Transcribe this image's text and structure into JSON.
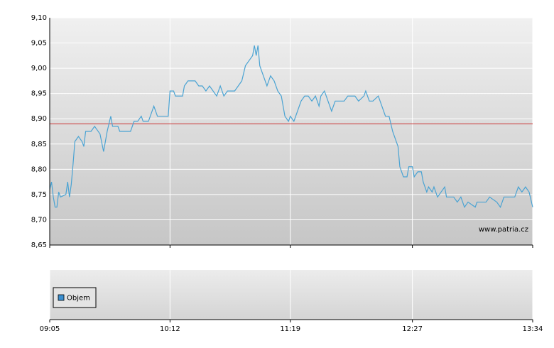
{
  "chart_data": {
    "type": "line",
    "x": [
      "09:05",
      "09:06",
      "09:07",
      "09:08",
      "09:09",
      "09:10",
      "09:11",
      "09:14",
      "09:15",
      "09:16",
      "09:17",
      "09:18",
      "09:19",
      "09:21",
      "09:23",
      "09:24",
      "09:25",
      "09:28",
      "09:30",
      "09:33",
      "09:35",
      "09:37",
      "09:39",
      "09:40",
      "09:43",
      "09:44",
      "09:50",
      "09:52",
      "09:54",
      "09:56",
      "09:57",
      "10:00",
      "10:02",
      "10:03",
      "10:05",
      "10:10",
      "10:11",
      "10:12",
      "10:14",
      "10:15",
      "10:19",
      "10:20",
      "10:22",
      "10:26",
      "10:28",
      "10:30",
      "10:32",
      "10:34",
      "10:36",
      "10:38",
      "10:40",
      "10:42",
      "10:44",
      "10:48",
      "10:50",
      "10:52",
      "10:54",
      "10:56",
      "10:58",
      "10:59",
      "11:00",
      "11:01",
      "11:02",
      "11:04",
      "11:06",
      "11:08",
      "11:10",
      "11:12",
      "11:14",
      "11:15",
      "11:16",
      "11:18",
      "11:19",
      "11:21",
      "11:23",
      "11:25",
      "11:27",
      "11:29",
      "11:31",
      "11:33",
      "11:35",
      "11:36",
      "11:38",
      "11:40",
      "11:42",
      "11:44",
      "11:49",
      "11:51",
      "11:55",
      "11:57",
      "12:00",
      "12:01",
      "12:03",
      "12:05",
      "12:08",
      "12:09",
      "12:11",
      "12:12",
      "12:14",
      "12:16",
      "12:17",
      "12:19",
      "12:20",
      "12:22",
      "12:24",
      "12:25",
      "12:27",
      "12:28",
      "12:30",
      "12:32",
      "12:33",
      "12:35",
      "12:36",
      "12:38",
      "12:39",
      "12:41",
      "12:43",
      "12:45",
      "12:46",
      "12:50",
      "12:52",
      "12:54",
      "12:56",
      "12:58",
      "13:02",
      "13:03",
      "13:08",
      "13:10",
      "13:14",
      "13:16",
      "13:18",
      "13:24",
      "13:26",
      "13:28",
      "13:30",
      "13:32",
      "13:34"
    ],
    "series": [
      {
        "color": "#4aa3d3",
        "values": [
          8.76,
          8.775,
          8.745,
          8.725,
          8.725,
          8.755,
          8.745,
          8.75,
          8.775,
          8.745,
          8.77,
          8.81,
          8.855,
          8.865,
          8.855,
          8.845,
          8.875,
          8.875,
          8.885,
          8.87,
          8.835,
          8.875,
          8.905,
          8.885,
          8.885,
          8.875,
          8.875,
          8.895,
          8.895,
          8.905,
          8.895,
          8.895,
          8.915,
          8.925,
          8.905,
          8.905,
          8.905,
          8.955,
          8.955,
          8.945,
          8.945,
          8.965,
          8.975,
          8.975,
          8.965,
          8.965,
          8.955,
          8.965,
          8.955,
          8.945,
          8.965,
          8.945,
          8.955,
          8.955,
          8.965,
          8.975,
          9.005,
          9.015,
          9.025,
          9.045,
          9.025,
          9.045,
          9.005,
          8.985,
          8.965,
          8.985,
          8.975,
          8.955,
          8.945,
          8.925,
          8.905,
          8.895,
          8.905,
          8.895,
          8.915,
          8.935,
          8.945,
          8.945,
          8.935,
          8.945,
          8.925,
          8.945,
          8.955,
          8.935,
          8.915,
          8.935,
          8.935,
          8.945,
          8.945,
          8.935,
          8.945,
          8.955,
          8.935,
          8.935,
          8.945,
          8.935,
          8.915,
          8.905,
          8.905,
          8.875,
          8.865,
          8.845,
          8.805,
          8.785,
          8.785,
          8.805,
          8.805,
          8.785,
          8.795,
          8.795,
          8.775,
          8.755,
          8.765,
          8.755,
          8.765,
          8.745,
          8.755,
          8.765,
          8.745,
          8.745,
          8.735,
          8.745,
          8.725,
          8.735,
          8.725,
          8.735,
          8.735,
          8.745,
          8.735,
          8.725,
          8.745,
          8.745,
          8.765,
          8.755,
          8.765,
          8.755,
          8.725
        ]
      }
    ],
    "reference_line": {
      "value": 8.89,
      "color": "#cc3333"
    },
    "xlim": [
      "09:05",
      "13:34"
    ],
    "xticks": [
      "09:05",
      "10:12",
      "11:19",
      "12:27",
      "13:34"
    ],
    "ylim": [
      8.65,
      9.1
    ],
    "yticks": [
      {
        "value": 8.65,
        "label": "8,65"
      },
      {
        "value": 8.7,
        "label": "8,70"
      },
      {
        "value": 8.75,
        "label": "8,75"
      },
      {
        "value": 8.8,
        "label": "8,80"
      },
      {
        "value": 8.85,
        "label": "8,85"
      },
      {
        "value": 8.9,
        "label": "8,90"
      },
      {
        "value": 8.95,
        "label": "8,95"
      },
      {
        "value": 9.0,
        "label": "9,00"
      },
      {
        "value": 9.05,
        "label": "9,05"
      },
      {
        "value": 9.1,
        "label": "9,10"
      }
    ],
    "grid": true,
    "watermark": "www.patria.cz",
    "volume_legend": {
      "name": "Objem",
      "color": "#3b8fd0"
    }
  }
}
